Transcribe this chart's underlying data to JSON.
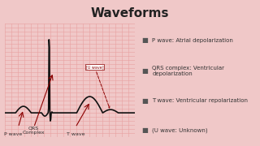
{
  "title": "Waveforms",
  "bg_color": "#f0c8c8",
  "grid_bg": "#fce8e8",
  "grid_color": "#e8a0a0",
  "ecg_color": "#111111",
  "arrow_color": "#8b0000",
  "label_color": "#333333",
  "legend_items": [
    "P wave: Atrial depolarization",
    "QRS complex: Ventricular depolarization",
    "T wave: Ventricular repolarization",
    "(U wave: Unknown)"
  ],
  "wave_labels": [
    "P wave",
    "QRS\nComplex",
    "T wave"
  ],
  "u_wave_label": "[U wave]"
}
